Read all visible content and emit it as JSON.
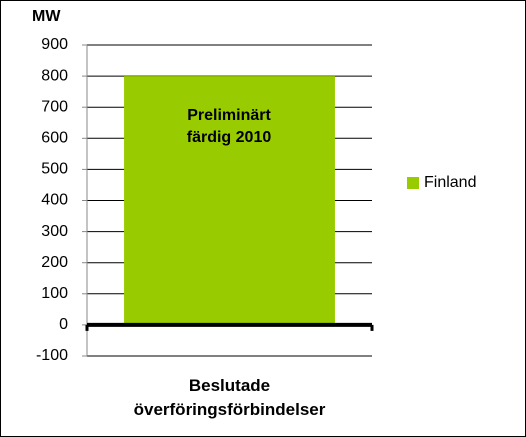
{
  "chart_data": {
    "type": "bar",
    "y_label": "MW",
    "categories": [
      "Beslutade överföringsförbindelser"
    ],
    "series": [
      {
        "name": "Finland",
        "color": "#99cc00",
        "values": [
          800
        ]
      }
    ],
    "annotation": "Preliminärt färdig 2010",
    "ylim": [
      -100,
      900
    ],
    "yticks": [
      -100,
      0,
      100,
      200,
      300,
      400,
      500,
      600,
      700,
      800,
      900
    ],
    "grid": true,
    "legend": "right"
  }
}
